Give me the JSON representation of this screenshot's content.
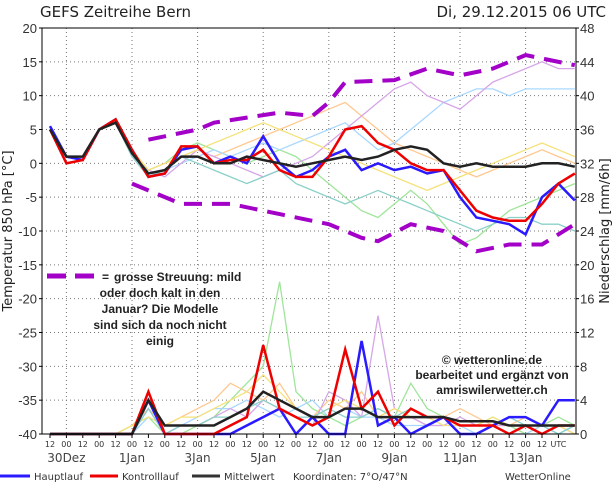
{
  "chart_data": {
    "type": "line",
    "title": "GEFS Zeitreihe Bern",
    "run": "Di, 29.12.2015 06 UTC",
    "ylabel": "Temperatur 850 hPa [°C]",
    "y2label": "Niederschlag [mm/6h]",
    "ylim": [
      -40,
      20
    ],
    "y2lim": [
      0,
      48
    ],
    "yticks": [
      20,
      15,
      10,
      5,
      0,
      -5,
      -10,
      -15,
      -20,
      -25,
      -30,
      -35,
      -40
    ],
    "y2ticks": [
      48,
      44,
      40,
      36,
      32,
      28,
      24,
      20,
      16,
      12,
      8,
      4,
      0
    ],
    "x_hour_labels": [
      "12",
      "00",
      "12",
      "00",
      "12",
      "00",
      "12",
      "00",
      "12",
      "00",
      "12",
      "00",
      "12",
      "00",
      "12",
      "00",
      "12",
      "00",
      "12",
      "00",
      "12",
      "00",
      "12",
      "00",
      "12",
      "00",
      "12",
      "00",
      "12",
      "00",
      "12",
      "UTC"
    ],
    "x_date_labels": [
      "30Dez",
      "1Jan",
      "3Jan",
      "5Jan",
      "7Jan",
      "9Jan",
      "11Jan",
      "13Jan"
    ],
    "time_step_hours": 12,
    "series": [
      {
        "name": "Hauptlauf",
        "color": "#2a1aff",
        "temp": [
          5.5,
          1,
          0.5,
          5,
          6.5,
          2,
          -2,
          -1.5,
          2,
          2.5,
          0,
          1,
          0,
          4,
          0,
          -2,
          -1,
          1,
          2,
          -1,
          0,
          -1,
          -0.5,
          -1.5,
          -1,
          -5,
          -8,
          -8.5,
          -9,
          -10.5,
          -5,
          -3,
          -5.5
        ],
        "precip": [
          0,
          0,
          0,
          0,
          0,
          0,
          4,
          0,
          0,
          0,
          0,
          0,
          1,
          2,
          3,
          0,
          2,
          0,
          0,
          11,
          1,
          2,
          0,
          1,
          2,
          0,
          0,
          1,
          2,
          2,
          1,
          4,
          4
        ]
      },
      {
        "name": "Kontrolllauf",
        "color": "#ee0000",
        "temp": [
          5,
          0,
          0.5,
          5,
          6.5,
          2,
          -2,
          -1.5,
          2.5,
          2.5,
          0,
          0.5,
          0.5,
          2,
          -1,
          -2,
          -2,
          1,
          5,
          5.5,
          3,
          2,
          0,
          -1,
          -1,
          -4,
          -7,
          -8,
          -8.5,
          -8.5,
          -6,
          -3,
          -1.5
        ],
        "precip": [
          0,
          0,
          0,
          0,
          0,
          0,
          5,
          0,
          0,
          0,
          0,
          1,
          2,
          10.5,
          3,
          2,
          1,
          2,
          10,
          3,
          5,
          1,
          3,
          2,
          2,
          1,
          1,
          1,
          0,
          1,
          0,
          1,
          1
        ]
      },
      {
        "name": "Mittelwert",
        "color": "#222222",
        "temp": [
          5,
          1,
          1,
          5,
          6,
          1.5,
          -1.5,
          -1,
          1,
          1,
          0,
          0,
          1,
          0.5,
          0,
          -0.5,
          0,
          0.5,
          1,
          0.5,
          1,
          2,
          2.5,
          2,
          0,
          -0.5,
          0,
          -0.5,
          -0.5,
          -0.5,
          0,
          0,
          -0.5
        ],
        "precip": [
          0,
          0,
          0,
          0,
          0,
          0,
          4,
          1,
          1,
          1,
          1,
          2,
          3,
          5,
          4,
          3,
          2,
          2,
          3,
          3,
          2,
          2,
          2,
          2,
          2,
          1.5,
          1.5,
          1.5,
          1,
          1,
          1,
          1,
          1
        ]
      }
    ],
    "ensemble": [
      {
        "color": "#9fe59a",
        "temp": [
          5,
          1,
          1,
          5,
          6,
          1,
          -1,
          0,
          2,
          3,
          2,
          1,
          0,
          1,
          2,
          1,
          -1,
          -3,
          -5,
          -7,
          -8,
          -6,
          -4,
          -6,
          -9,
          -12,
          -11,
          -9,
          -7,
          -6,
          -5,
          -4,
          -3
        ],
        "precip": [
          0,
          0,
          0,
          0,
          0,
          1,
          2,
          0,
          0,
          1,
          2,
          4,
          6,
          8,
          18,
          5,
          3,
          2,
          1,
          2,
          3,
          2,
          6,
          3,
          2,
          1,
          1,
          2,
          1,
          0,
          1,
          2,
          1
        ]
      },
      {
        "color": "#ffc890",
        "temp": [
          5,
          1,
          1,
          5,
          6,
          2,
          -1,
          0,
          1,
          2,
          1,
          2,
          3,
          4,
          5,
          6,
          7,
          8,
          9,
          7,
          5,
          3,
          2,
          1,
          0,
          -1,
          -2,
          -1,
          0,
          1,
          2,
          1,
          0
        ],
        "precip": [
          0,
          0,
          0,
          0,
          0,
          1,
          3,
          1,
          2,
          3,
          4,
          6,
          5,
          4,
          6,
          3,
          2,
          4,
          3,
          5,
          2,
          3,
          2,
          1,
          2,
          3,
          2,
          1,
          1,
          2,
          1,
          1,
          1
        ]
      },
      {
        "color": "#a9d8ff",
        "temp": [
          5,
          1,
          1,
          5,
          6,
          2,
          -2,
          -1,
          0,
          1,
          2,
          1,
          2,
          3,
          2,
          3,
          4,
          5,
          6,
          4,
          2,
          3,
          5,
          7,
          9,
          10,
          11,
          11,
          10,
          11,
          11,
          11,
          11
        ],
        "precip": [
          0,
          0,
          0,
          0,
          0,
          0,
          2,
          1,
          1,
          2,
          3,
          3,
          4,
          3,
          2,
          3,
          4,
          2,
          3,
          2,
          2,
          1,
          1,
          1,
          1,
          1,
          0,
          1,
          0,
          0,
          1,
          0,
          1
        ]
      },
      {
        "color": "#d6a6e8",
        "temp": [
          5,
          1,
          1,
          5,
          6,
          1,
          -1,
          -2,
          0,
          2,
          1,
          0,
          -1,
          -2,
          -1,
          0,
          1,
          3,
          5,
          7,
          9,
          11,
          12,
          10,
          9,
          8,
          10,
          12,
          13,
          14,
          15,
          14,
          14
        ],
        "precip": [
          0,
          0,
          0,
          0,
          0,
          0,
          3,
          0,
          1,
          1,
          2,
          3,
          2,
          4,
          3,
          2,
          1,
          5,
          4,
          2,
          14,
          3,
          2,
          1,
          1,
          2,
          1,
          1,
          1,
          1,
          0,
          1,
          0
        ]
      },
      {
        "color": "#f5e27a",
        "temp": [
          5,
          1,
          1,
          5,
          6,
          2,
          -1,
          0,
          1,
          2,
          3,
          4,
          5,
          6,
          5,
          4,
          3,
          2,
          1,
          0,
          -1,
          -2,
          -3,
          -4,
          -3,
          -2,
          -1,
          0,
          1,
          2,
          3,
          2,
          1
        ],
        "precip": [
          0,
          0,
          0,
          0,
          0,
          1,
          2,
          1,
          2,
          2,
          3,
          4,
          5,
          7,
          5,
          3,
          2,
          3,
          4,
          3,
          2,
          3,
          2,
          2,
          1,
          1,
          1,
          2,
          1,
          1,
          1,
          1,
          0
        ]
      },
      {
        "color": "#8ad0c8",
        "temp": [
          5,
          1,
          1,
          5,
          6,
          1,
          -2,
          -1,
          1,
          0,
          -1,
          -2,
          -3,
          -2,
          -1,
          -3,
          -4,
          -5,
          -6,
          -5,
          -4,
          -5,
          -6,
          -7,
          -8,
          -9,
          -10,
          -9,
          -8,
          -8,
          -9,
          -9,
          -10
        ],
        "precip": [
          0,
          0,
          0,
          0,
          0,
          0,
          3,
          0,
          1,
          1,
          2,
          2,
          3,
          4,
          3,
          2,
          2,
          3,
          2,
          2,
          3,
          2,
          3,
          2,
          2,
          1,
          1,
          1,
          2,
          1,
          1,
          0,
          1
        ]
      }
    ],
    "spread_envelope": {
      "color": "#a300c8",
      "upper": [
        [
          6,
          3.5
        ],
        [
          9,
          5
        ],
        [
          10,
          6
        ],
        [
          14,
          7.5
        ],
        [
          16,
          7
        ],
        [
          17,
          9
        ],
        [
          18,
          12
        ],
        [
          21,
          12.3
        ],
        [
          23,
          14
        ],
        [
          25,
          13
        ],
        [
          27,
          14
        ],
        [
          29,
          16
        ],
        [
          32,
          14.5
        ]
      ],
      "lower": [
        [
          5,
          -3
        ],
        [
          8,
          -6
        ],
        [
          11,
          -6
        ],
        [
          14,
          -7.5
        ],
        [
          17,
          -9
        ],
        [
          19,
          -11
        ],
        [
          20,
          -11.5
        ],
        [
          22,
          -9
        ],
        [
          24,
          -10
        ],
        [
          26,
          -13
        ],
        [
          28,
          -12
        ],
        [
          30,
          -12
        ],
        [
          32,
          -9
        ]
      ]
    },
    "legend": {
      "placement": "bottom",
      "entries": [
        "Hauptlauf",
        "Kontrolllauf",
        "Mittelwert"
      ]
    },
    "annotation": {
      "symbol": "=",
      "text": [
        "grosse Streuung: mild",
        "oder doch kalt in den",
        "Januar? Die Modelle",
        "sind sich da noch nicht",
        "einig"
      ]
    }
  },
  "footer": {
    "coordinates": "Koordinaten: 7°O/47°N",
    "brand": "WetterOnline"
  },
  "credit": [
    "© wetteronline.de",
    "bearbeitet und ergänzt von",
    "amriswilerwetter.ch"
  ]
}
